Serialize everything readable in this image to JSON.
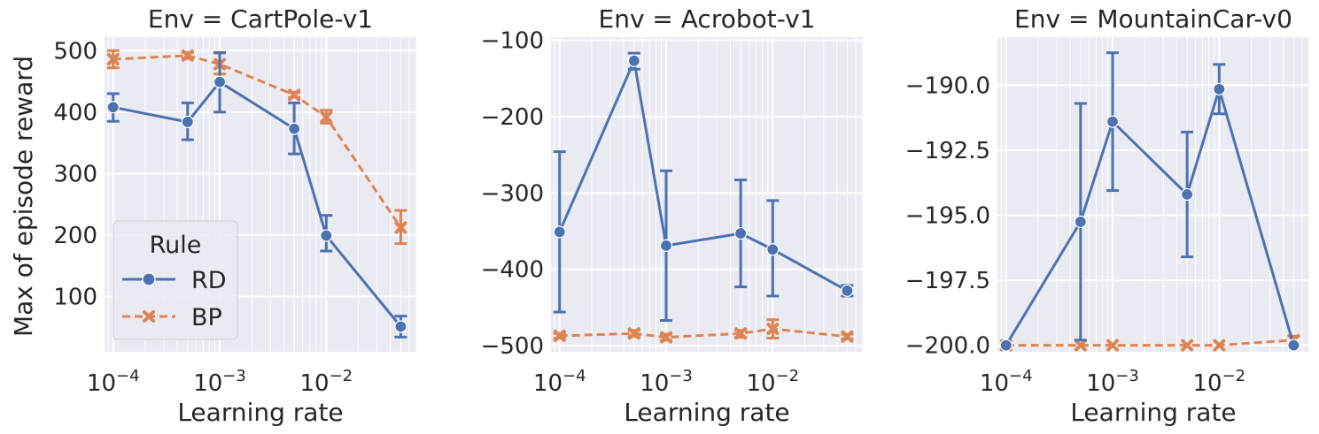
{
  "figure": {
    "ylabel": "Max of episode reward",
    "xlabel": "Learning rate",
    "colors": {
      "RD": "#4c72b0",
      "BP": "#dd8452",
      "background": "#eaeaf2",
      "grid": "#ffffff"
    }
  },
  "legend": {
    "title": "Rule",
    "entries": [
      {
        "name": "RD",
        "marker": "circle",
        "dash": "solid"
      },
      {
        "name": "BP",
        "marker": "x",
        "dash": "dashed"
      }
    ]
  },
  "chart_data": [
    {
      "type": "line",
      "title": "Env = CartPole-v1",
      "xlabel": "Learning rate",
      "ylabel": "Max of episode reward",
      "xscale": "log",
      "xticks": [
        "10^-4",
        "10^-3",
        "10^-2"
      ],
      "yticks": [
        "100",
        "200",
        "300",
        "400",
        "500"
      ],
      "xlim": [
        8.3e-05,
        0.07
      ],
      "ylim": [
        10,
        522
      ],
      "x": [
        0.0001,
        0.0005,
        0.001,
        0.005,
        0.01,
        0.05
      ],
      "series": [
        {
          "name": "RD",
          "values": [
            408,
            384,
            449,
            373,
            199,
            51
          ],
          "err_low": [
            385,
            355,
            400,
            332,
            174,
            34
          ],
          "err_high": [
            430,
            415,
            497,
            415,
            232,
            68
          ]
        },
        {
          "name": "BP",
          "values": [
            486,
            492,
            478,
            428,
            392,
            212
          ],
          "err_low": [
            472,
            487,
            462,
            424,
            382,
            186
          ],
          "err_high": [
            500,
            497,
            496,
            432,
            403,
            240
          ]
        }
      ],
      "grid": true,
      "legend": "lower-left"
    },
    {
      "type": "line",
      "title": "Env = Acrobot-v1",
      "xlabel": "Learning rate",
      "ylabel": "",
      "xscale": "log",
      "xticks": [
        "10^-4",
        "10^-3",
        "10^-2"
      ],
      "yticks": [
        "−500",
        "−400",
        "−300",
        "−200",
        "−100"
      ],
      "xlim": [
        8.3e-05,
        0.07
      ],
      "ylim": [
        -508,
        -96
      ],
      "x": [
        0.0001,
        0.0005,
        0.001,
        0.005,
        0.01,
        0.05
      ],
      "series": [
        {
          "name": "RD",
          "values": [
            -351,
            -127,
            -369,
            -353,
            -374,
            -428
          ],
          "err_low": [
            -456,
            -138,
            -467,
            -423,
            -435,
            -435
          ],
          "err_high": [
            -246,
            -117,
            -271,
            -283,
            -310,
            -421
          ]
        },
        {
          "name": "BP",
          "values": [
            -487,
            -484,
            -489,
            -484,
            -478,
            -488
          ],
          "err_low": [
            -490,
            -488,
            -493,
            -489,
            -490,
            -491
          ],
          "err_high": [
            -484,
            -480,
            -485,
            -480,
            -466,
            -485
          ]
        }
      ],
      "grid": true
    },
    {
      "type": "line",
      "title": "Env = MountainCar-v0",
      "xlabel": "Learning rate",
      "ylabel": "",
      "xscale": "log",
      "xticks": [
        "10^-4",
        "10^-3",
        "10^-2"
      ],
      "yticks": [
        "−200.0",
        "−197.5",
        "−195.0",
        "−192.5",
        "−190.0"
      ],
      "xlim": [
        8.3e-05,
        0.07
      ],
      "ylim": [
        -200.25,
        -188.15
      ],
      "x": [
        0.0001,
        0.0005,
        0.001,
        0.005,
        0.01,
        0.05
      ],
      "series": [
        {
          "name": "RD",
          "values": [
            -200.0,
            -195.25,
            -191.4,
            -194.2,
            -190.15,
            -200.0
          ],
          "err_low": [
            -200.0,
            -199.8,
            -194.05,
            -196.6,
            -191.1,
            -200.0
          ],
          "err_high": [
            -200.0,
            -190.7,
            -188.75,
            -191.8,
            -189.2,
            -200.0
          ]
        },
        {
          "name": "BP",
          "values": [
            -200.0,
            -200.0,
            -200.0,
            -200.0,
            -200.0,
            -199.8
          ],
          "err_low": [
            -200.0,
            -200.0,
            -200.0,
            -200.0,
            -200.0,
            -199.95
          ],
          "err_high": [
            -200.0,
            -200.0,
            -200.0,
            -200.0,
            -200.0,
            -199.65
          ]
        }
      ],
      "grid": true
    }
  ]
}
